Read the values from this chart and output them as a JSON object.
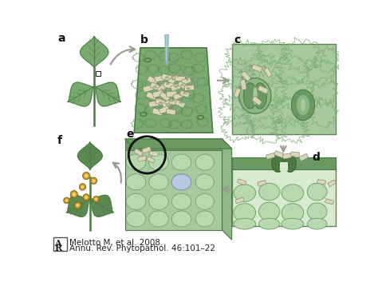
{
  "bg_color": "#ffffff",
  "leaf_fill": "#7aaa72",
  "leaf_fill_dark": "#5a8a52",
  "leaf_edge": "#4a7a42",
  "leaf_vein": "#4a7a42",
  "panel_b_bg": "#7aaa72",
  "panel_b_cell": "#a8c8a0",
  "panel_b_cell_edge": "#5a8a52",
  "panel_c_bg": "#a8c8a0",
  "panel_c_cell": "#b8d8b0",
  "panel_c_cell_edge": "#7aaa72",
  "panel_d_bg": "#d8ead0",
  "panel_d_epi": "#6a9a62",
  "panel_d_epi_edge": "#4a7a42",
  "panel_e_front": "#a8c8a0",
  "panel_e_top": "#88b880",
  "panel_e_right": "#90b888",
  "panel_e_epi": "#6a9a62",
  "stomate_dark": "#4a7a42",
  "stomate_mid": "#6a9a62",
  "stomate_light": "#a8c8a0",
  "bacteria_fill": "#d8d8b8",
  "bacteria_edge": "#888870",
  "bacteria_flagella": "#888870",
  "cell_fill": "#b8d8b0",
  "cell_edge": "#6a9a62",
  "infected_fill": "#b8c8e0",
  "infected_edge": "#8890b8",
  "lesion_outer": "#b8882a",
  "lesion_inner": "#d8b850",
  "lesion_center": "#f0d870",
  "arrow_color": "#9a9a8a",
  "circle_color": "#111111",
  "label_color": "#111111",
  "citation1": "Melotto M, et al. 2008.",
  "citation2": "Annu. Rev. Phytopathol. 46:101–22",
  "labels": [
    "a",
    "b",
    "c",
    "d",
    "e",
    "f"
  ],
  "needle_fill": "#90b8c0",
  "needle_edge": "#6090a0"
}
